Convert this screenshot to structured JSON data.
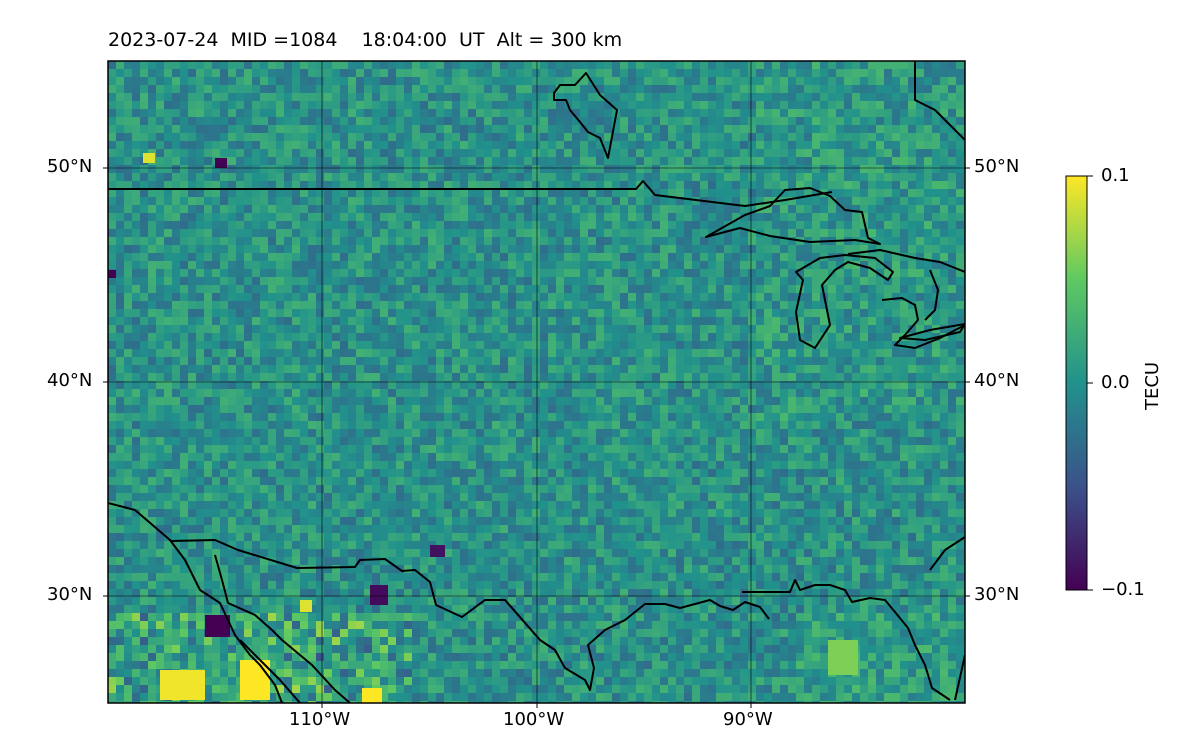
{
  "title": "2023-07-24  MID =1084    18:04:00  UT  Alt = 300 km",
  "map": {
    "lat_labels": [
      "50°N",
      "40°N",
      "30°N"
    ],
    "lon_labels": [
      "110°W",
      "100°W",
      "90°W"
    ],
    "extent": {
      "lon_min": -120,
      "lon_max": -80,
      "lat_min": 25,
      "lat_max": 55
    },
    "gridlines": true,
    "coastlines": true,
    "borders": true
  },
  "colorbar": {
    "label": "TECU",
    "ticks": [
      "0.1",
      "0.0",
      "−0.1"
    ],
    "vmin": -0.1,
    "vmax": 0.1,
    "colormap": "viridis",
    "colors": [
      "#440154",
      "#3b528b",
      "#21918c",
      "#5ec962",
      "#fde725"
    ]
  }
}
